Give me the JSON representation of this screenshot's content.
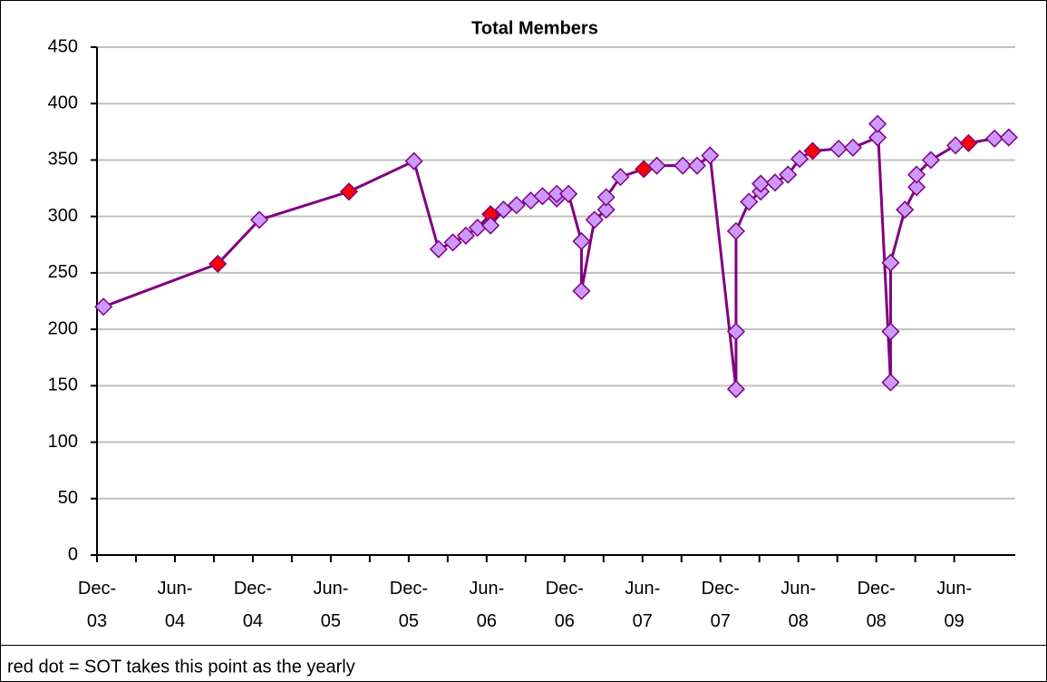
{
  "chart_data": {
    "type": "line",
    "title": "Total Members",
    "footnote": "red dot = SOT takes this point as the yearly",
    "xlim": [
      0,
      70.7
    ],
    "xticks": [
      {
        "value": 0,
        "label": "Dec-03"
      },
      {
        "value": 6,
        "label": "Jun-04"
      },
      {
        "value": 12,
        "label": "Dec-04"
      },
      {
        "value": 18,
        "label": "Jun-05"
      },
      {
        "value": 24,
        "label": "Dec-05"
      },
      {
        "value": 30,
        "label": "Jun-06"
      },
      {
        "value": 36,
        "label": "Dec-06"
      },
      {
        "value": 42,
        "label": "Jun-07"
      },
      {
        "value": 48,
        "label": "Dec-07"
      },
      {
        "value": 54,
        "label": "Jun-08"
      },
      {
        "value": 60,
        "label": "Dec-08"
      },
      {
        "value": 66,
        "label": "Jun-09"
      }
    ],
    "ylim": [
      0,
      450
    ],
    "yticks": [
      0,
      50,
      100,
      150,
      200,
      250,
      300,
      350,
      400,
      450
    ],
    "grid": true,
    "series": [
      {
        "color": "#800080",
        "x": [
          0.5,
          9.3,
          12.5,
          19.4,
          24.4,
          26.3,
          27.4,
          28.4,
          29.3,
          30.3,
          30.3,
          31.3,
          32.3,
          33.4,
          34.3,
          35.4,
          35.4,
          36.3,
          37.3,
          37.3,
          38.3,
          39.2,
          39.2,
          40.3,
          42.1,
          43.1,
          45.1,
          46.2,
          47.2,
          49.2,
          49.2,
          49.2,
          50.2,
          51.1,
          51.1,
          52.2,
          53.2,
          54.1,
          55.1,
          57.1,
          58.2,
          60.1,
          60.1,
          61.1,
          61.1,
          61.1,
          62.2,
          63.1,
          63.1,
          64.2,
          66.1,
          67.1,
          69.1,
          70.2
        ],
        "values": [
          220,
          258,
          297,
          322,
          349,
          271,
          277,
          283,
          290,
          302,
          292,
          306,
          310,
          314,
          318,
          316,
          320,
          320,
          278,
          234,
          297,
          306,
          317,
          335,
          342,
          345,
          345,
          345,
          354,
          147,
          198,
          287,
          313,
          322,
          329,
          330,
          337,
          351,
          358,
          360,
          361,
          370,
          382,
          153,
          198,
          259,
          306,
          326,
          337,
          350,
          363,
          365,
          369,
          370
        ],
        "marker_colors": [
          "#cc99ff",
          "#ff0000",
          "#cc99ff",
          "#ff0000",
          "#cc99ff",
          "#cc99ff",
          "#cc99ff",
          "#cc99ff",
          "#cc99ff",
          "#ff0000",
          "#cc99ff",
          "#cc99ff",
          "#cc99ff",
          "#cc99ff",
          "#cc99ff",
          "#cc99ff",
          "#cc99ff",
          "#cc99ff",
          "#cc99ff",
          "#cc99ff",
          "#cc99ff",
          "#cc99ff",
          "#cc99ff",
          "#cc99ff",
          "#ff0000",
          "#cc99ff",
          "#cc99ff",
          "#cc99ff",
          "#cc99ff",
          "#cc99ff",
          "#cc99ff",
          "#cc99ff",
          "#cc99ff",
          "#cc99ff",
          "#cc99ff",
          "#cc99ff",
          "#cc99ff",
          "#cc99ff",
          "#ff0000",
          "#cc99ff",
          "#cc99ff",
          "#cc99ff",
          "#cc99ff",
          "#cc99ff",
          "#cc99ff",
          "#cc99ff",
          "#cc99ff",
          "#cc99ff",
          "#cc99ff",
          "#cc99ff",
          "#cc99ff",
          "#ff0000",
          "#cc99ff",
          "#cc99ff"
        ]
      }
    ]
  }
}
